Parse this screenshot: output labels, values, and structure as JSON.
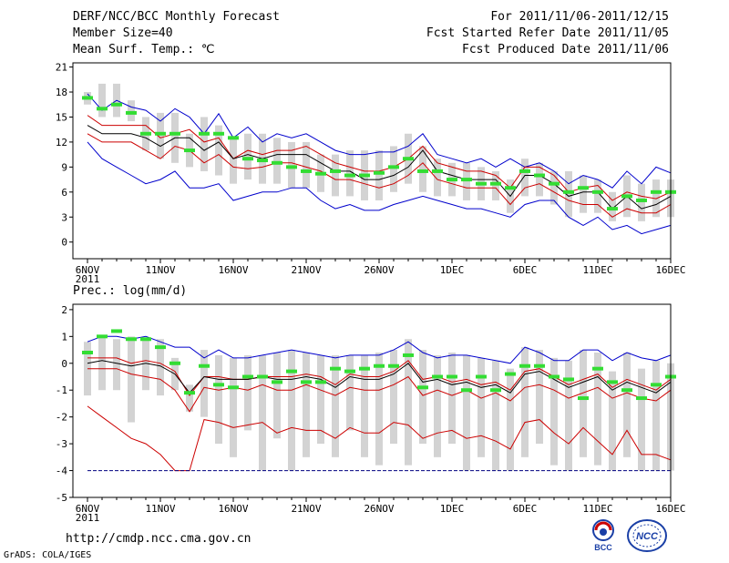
{
  "header": {
    "title": "DERF/NCC/BCC Monthly Forecast",
    "member_size": "Member Size=40",
    "variable": "Mean Surf. Temp.: ℃",
    "forecast_period": "For 2011/11/06-2011/12/15",
    "fcst_started": "Fcst Started Refer Date 2011/11/05",
    "fcst_produced": "Fcst Produced Date 2011/11/06"
  },
  "footer": {
    "url": "http://cmdp.ncc.cma.gov.cn",
    "credit": "GrADS: COLA/IGES",
    "logo_left_text": "BCC",
    "logo_right_text": "NCC"
  },
  "colors": {
    "envelope": "#0000cc",
    "spread": "#cc0000",
    "mean": "#000000",
    "box": "#d3d3d3",
    "obs": "#33dd33",
    "floor": "#000080"
  },
  "chart_data": [
    {
      "type": "line",
      "title": "Mean Surf. Temp.: ℃",
      "x_tick_labels": [
        "6NOV",
        "11NOV",
        "16NOV",
        "21NOV",
        "26NOV",
        "1DEC",
        "6DEC",
        "11DEC",
        "16DEC"
      ],
      "x_sublabel": "2011",
      "x_days": 41,
      "ylim": [
        -2,
        21.5
      ],
      "y_ticks": [
        21,
        18,
        15,
        12,
        9,
        6,
        3,
        0
      ],
      "series": [
        {
          "name": "max",
          "color": "#0000cc",
          "values": [
            17.8,
            15.8,
            17.0,
            16.2,
            15.8,
            14.5,
            16.0,
            15.0,
            13.0,
            15.4,
            12.5,
            13.8,
            12.0,
            13.0,
            12.5,
            13.0,
            12.0,
            11.0,
            10.5,
            10.5,
            10.8,
            10.8,
            11.5,
            13.0,
            10.5,
            10.0,
            9.5,
            10.0,
            9.0,
            10.0,
            9.0,
            9.5,
            8.5,
            7.0,
            8.0,
            7.5,
            6.5,
            8.5,
            7.0,
            9.0,
            8.3
          ]
        },
        {
          "name": "upper",
          "color": "#cc0000",
          "values": [
            15.2,
            14.0,
            14.0,
            14.0,
            14.0,
            12.5,
            13.0,
            13.5,
            12.0,
            12.5,
            10.0,
            11.0,
            10.5,
            11.0,
            11.0,
            11.5,
            10.5,
            9.5,
            9.0,
            8.5,
            8.5,
            9.0,
            10.0,
            11.5,
            9.5,
            9.0,
            8.5,
            8.5,
            8.0,
            6.5,
            9.0,
            9.0,
            8.0,
            6.0,
            6.5,
            6.8,
            5.0,
            6.0,
            5.5,
            5.2,
            6.0
          ]
        },
        {
          "name": "mean",
          "color": "#000000",
          "values": [
            14.0,
            13.0,
            13.0,
            13.0,
            12.5,
            11.5,
            12.5,
            12.5,
            11.0,
            12.0,
            10.0,
            10.5,
            10.0,
            10.5,
            10.5,
            10.5,
            9.5,
            8.5,
            8.5,
            7.5,
            7.5,
            8.0,
            9.0,
            11.0,
            8.5,
            8.0,
            7.5,
            7.5,
            7.5,
            5.5,
            8.0,
            8.0,
            7.0,
            5.5,
            6.0,
            6.0,
            4.0,
            5.5,
            4.0,
            4.5,
            5.5
          ]
        },
        {
          "name": "lower",
          "color": "#cc0000",
          "values": [
            13.0,
            12.0,
            12.0,
            12.0,
            11.0,
            10.0,
            11.5,
            11.0,
            9.5,
            10.5,
            9.0,
            8.8,
            9.0,
            9.5,
            9.5,
            9.0,
            8.5,
            7.5,
            7.5,
            7.0,
            6.5,
            7.0,
            8.0,
            9.5,
            7.5,
            7.0,
            6.5,
            6.5,
            6.5,
            4.5,
            6.5,
            7.0,
            6.0,
            5.0,
            4.5,
            4.5,
            3.0,
            4.0,
            3.5,
            3.5,
            4.5
          ]
        },
        {
          "name": "min",
          "color": "#0000cc",
          "values": [
            12.0,
            10.0,
            9.0,
            8.0,
            7.0,
            7.5,
            8.5,
            6.5,
            6.5,
            7.0,
            5.0,
            5.5,
            6.0,
            6.0,
            6.5,
            6.5,
            5.0,
            4.0,
            4.5,
            3.8,
            3.8,
            4.5,
            5.0,
            5.5,
            5.0,
            4.5,
            4.0,
            4.0,
            3.5,
            3.0,
            4.5,
            5.0,
            5.0,
            3.0,
            2.0,
            3.0,
            1.5,
            2.0,
            1.0,
            1.5,
            2.0
          ]
        },
        {
          "name": "obs",
          "color": "#33dd33",
          "values": [
            17.3,
            16.0,
            16.5,
            15.5,
            13.0,
            13.0,
            13.0,
            11.0,
            13.0,
            13.0,
            12.5,
            10.0,
            9.8,
            9.5,
            9.0,
            8.5,
            8.2,
            8.5,
            8.0,
            8.0,
            8.3,
            9.0,
            10.0,
            8.5,
            8.5,
            7.5,
            7.5,
            7.0,
            7.0,
            6.5,
            8.5,
            8.0,
            7.0,
            6.0,
            6.5,
            6.0,
            4.0,
            5.5,
            5.0,
            6.0,
            6.0
          ]
        }
      ],
      "boxes": [
        [
          16.5,
          18.0
        ],
        [
          15.0,
          19.0
        ],
        [
          15.0,
          19.0
        ],
        [
          14.5,
          17.0
        ],
        [
          11.0,
          15.0
        ],
        [
          10.0,
          15.5
        ],
        [
          9.5,
          15.5
        ],
        [
          9.0,
          13.0
        ],
        [
          8.5,
          15.0
        ],
        [
          8.0,
          14.0
        ],
        [
          7.0,
          12.5
        ],
        [
          7.5,
          13.0
        ],
        [
          7.0,
          13.0
        ],
        [
          7.0,
          12.5
        ],
        [
          6.5,
          12.0
        ],
        [
          6.5,
          12.0
        ],
        [
          6.0,
          10.5
        ],
        [
          5.5,
          10.5
        ],
        [
          5.5,
          11.0
        ],
        [
          5.0,
          11.0
        ],
        [
          5.0,
          11.0
        ],
        [
          6.0,
          11.5
        ],
        [
          7.0,
          13.0
        ],
        [
          6.0,
          11.5
        ],
        [
          5.5,
          10.0
        ],
        [
          5.5,
          9.5
        ],
        [
          5.0,
          9.5
        ],
        [
          5.0,
          9.0
        ],
        [
          5.0,
          8.5
        ],
        [
          3.5,
          7.5
        ],
        [
          5.5,
          10.0
        ],
        [
          5.5,
          9.5
        ],
        [
          4.5,
          8.5
        ],
        [
          3.0,
          8.5
        ],
        [
          3.5,
          8.0
        ],
        [
          3.5,
          7.5
        ],
        [
          2.5,
          6.0
        ],
        [
          3.0,
          8.0
        ],
        [
          2.5,
          7.0
        ],
        [
          3.0,
          7.5
        ],
        [
          3.0,
          7.5
        ]
      ]
    },
    {
      "type": "line",
      "title": "Prec.: log(mm/d)",
      "x_tick_labels": [
        "6NOV",
        "11NOV",
        "16NOV",
        "21NOV",
        "26NOV",
        "1DEC",
        "6DEC",
        "11DEC",
        "16DEC"
      ],
      "x_sublabel": "2011",
      "x_days": 41,
      "ylim": [
        -5,
        2.2
      ],
      "y_ticks": [
        2,
        1,
        0,
        -1,
        -2,
        -3,
        -4,
        -5
      ],
      "series": [
        {
          "name": "max",
          "color": "#0000cc",
          "values": [
            0.8,
            1.0,
            1.0,
            0.9,
            1.0,
            0.8,
            0.6,
            0.6,
            0.2,
            0.5,
            0.2,
            0.2,
            0.3,
            0.4,
            0.5,
            0.4,
            0.3,
            0.2,
            0.3,
            0.3,
            0.3,
            0.5,
            0.8,
            0.4,
            0.2,
            0.3,
            0.3,
            0.2,
            0.1,
            0.0,
            0.6,
            0.4,
            0.1,
            0.1,
            0.5,
            0.5,
            0.1,
            0.4,
            0.2,
            0.1,
            0.3
          ]
        },
        {
          "name": "upper",
          "color": "#cc0000",
          "values": [
            0.2,
            0.2,
            0.2,
            0.0,
            0.1,
            0.0,
            -0.3,
            -1.2,
            -0.5,
            -0.5,
            -0.6,
            -0.6,
            -0.5,
            -0.5,
            -0.5,
            -0.4,
            -0.5,
            -0.8,
            -0.4,
            -0.5,
            -0.5,
            -0.3,
            0.1,
            -0.6,
            -0.5,
            -0.7,
            -0.6,
            -0.8,
            -0.7,
            -1.0,
            -0.3,
            -0.2,
            -0.5,
            -0.8,
            -0.6,
            -0.4,
            -0.9,
            -0.6,
            -0.8,
            -1.0,
            -0.6
          ]
        },
        {
          "name": "mean",
          "color": "#000000",
          "values": [
            0.0,
            0.1,
            0.0,
            -0.1,
            0.0,
            -0.1,
            -0.4,
            -1.1,
            -0.5,
            -0.6,
            -0.6,
            -0.6,
            -0.5,
            -0.6,
            -0.6,
            -0.5,
            -0.6,
            -0.9,
            -0.5,
            -0.6,
            -0.6,
            -0.4,
            0.0,
            -0.7,
            -0.6,
            -0.8,
            -0.7,
            -0.9,
            -0.8,
            -1.1,
            -0.4,
            -0.3,
            -0.6,
            -0.9,
            -0.7,
            -0.5,
            -1.0,
            -0.7,
            -0.9,
            -1.1,
            -0.7
          ]
        },
        {
          "name": "lower",
          "color": "#cc0000",
          "values": [
            -0.2,
            -0.2,
            -0.2,
            -0.4,
            -0.5,
            -0.6,
            -1.0,
            -1.8,
            -0.9,
            -1.0,
            -0.9,
            -1.0,
            -0.8,
            -1.0,
            -1.0,
            -0.8,
            -1.0,
            -1.2,
            -0.9,
            -1.0,
            -1.0,
            -0.8,
            -0.5,
            -1.2,
            -1.0,
            -1.2,
            -1.0,
            -1.3,
            -1.1,
            -1.4,
            -0.9,
            -0.8,
            -1.0,
            -1.3,
            -1.1,
            -0.9,
            -1.3,
            -1.1,
            -1.3,
            -1.4,
            -1.0
          ]
        },
        {
          "name": "min",
          "color": "#cc0000",
          "values": [
            -1.6,
            -2.0,
            -2.4,
            -2.8,
            -3.0,
            -3.4,
            -4.0,
            -4.0,
            -2.1,
            -2.2,
            -2.4,
            -2.3,
            -2.2,
            -2.6,
            -2.4,
            -2.5,
            -2.5,
            -2.8,
            -2.4,
            -2.6,
            -2.6,
            -2.2,
            -2.3,
            -2.8,
            -2.6,
            -2.5,
            -2.8,
            -2.7,
            -2.9,
            -3.2,
            -2.2,
            -2.1,
            -2.6,
            -3.0,
            -2.4,
            -2.9,
            -3.4,
            -2.5,
            -3.4,
            -3.4,
            -3.6
          ]
        },
        {
          "name": "floor",
          "color": "#000080",
          "values": [
            -4,
            -4,
            -4,
            -4,
            -4,
            -4,
            -4,
            -4,
            -4,
            -4,
            -4,
            -4,
            -4,
            -4,
            -4,
            -4,
            -4,
            -4,
            -4,
            -4,
            -4,
            -4,
            -4,
            -4,
            -4,
            -4,
            -4,
            -4,
            -4,
            -4,
            -4,
            -4,
            -4,
            -4,
            -4,
            -4,
            -4,
            -4,
            -4,
            -4,
            -4
          ]
        },
        {
          "name": "obs",
          "color": "#33dd33",
          "values": [
            0.4,
            1.0,
            1.2,
            0.9,
            0.9,
            0.6,
            0.0,
            -1.1,
            -0.1,
            -0.8,
            -0.9,
            -0.5,
            -0.5,
            -0.7,
            -0.3,
            -0.7,
            -0.7,
            -0.2,
            -0.3,
            -0.2,
            -0.1,
            -0.1,
            0.3,
            -0.9,
            -0.5,
            -0.5,
            -1.0,
            -0.5,
            -1.0,
            -0.4,
            -0.1,
            -0.1,
            -0.5,
            -0.6,
            -1.3,
            -0.2,
            -0.7,
            -1.0,
            -1.3,
            -0.8,
            -0.5
          ]
        }
      ],
      "boxes": [
        [
          -1.2,
          0.8
        ],
        [
          -1.0,
          1.0
        ],
        [
          -1.0,
          0.9
        ],
        [
          -2.2,
          1.0
        ],
        [
          -1.0,
          0.9
        ],
        [
          -1.2,
          0.9
        ],
        [
          -1.0,
          0.2
        ],
        [
          -1.8,
          -0.8
        ],
        [
          -2.0,
          0.5
        ],
        [
          -3.0,
          0.3
        ],
        [
          -3.5,
          0.2
        ],
        [
          -2.5,
          0.3
        ],
        [
          -4.0,
          0.3
        ],
        [
          -2.8,
          0.4
        ],
        [
          -4.0,
          0.5
        ],
        [
          -3.5,
          0.4
        ],
        [
          -3.0,
          0.3
        ],
        [
          -3.5,
          0.3
        ],
        [
          -2.5,
          0.3
        ],
        [
          -3.5,
          0.3
        ],
        [
          -3.8,
          0.4
        ],
        [
          -3.0,
          0.5
        ],
        [
          -3.8,
          0.9
        ],
        [
          -3.0,
          0.5
        ],
        [
          -3.5,
          0.3
        ],
        [
          -3.0,
          0.4
        ],
        [
          -4.0,
          0.3
        ],
        [
          -3.5,
          0.2
        ],
        [
          -4.0,
          0.1
        ],
        [
          -4.0,
          -0.2
        ],
        [
          -3.5,
          0.6
        ],
        [
          -3.0,
          0.5
        ],
        [
          -3.8,
          0.2
        ],
        [
          -4.0,
          0.1
        ],
        [
          -3.5,
          0.5
        ],
        [
          -3.8,
          0.4
        ],
        [
          -4.0,
          -0.3
        ],
        [
          -3.5,
          0.4
        ],
        [
          -4.0,
          -0.2
        ],
        [
          -4.0,
          0.1
        ],
        [
          -4.0,
          0.0
        ]
      ]
    }
  ]
}
